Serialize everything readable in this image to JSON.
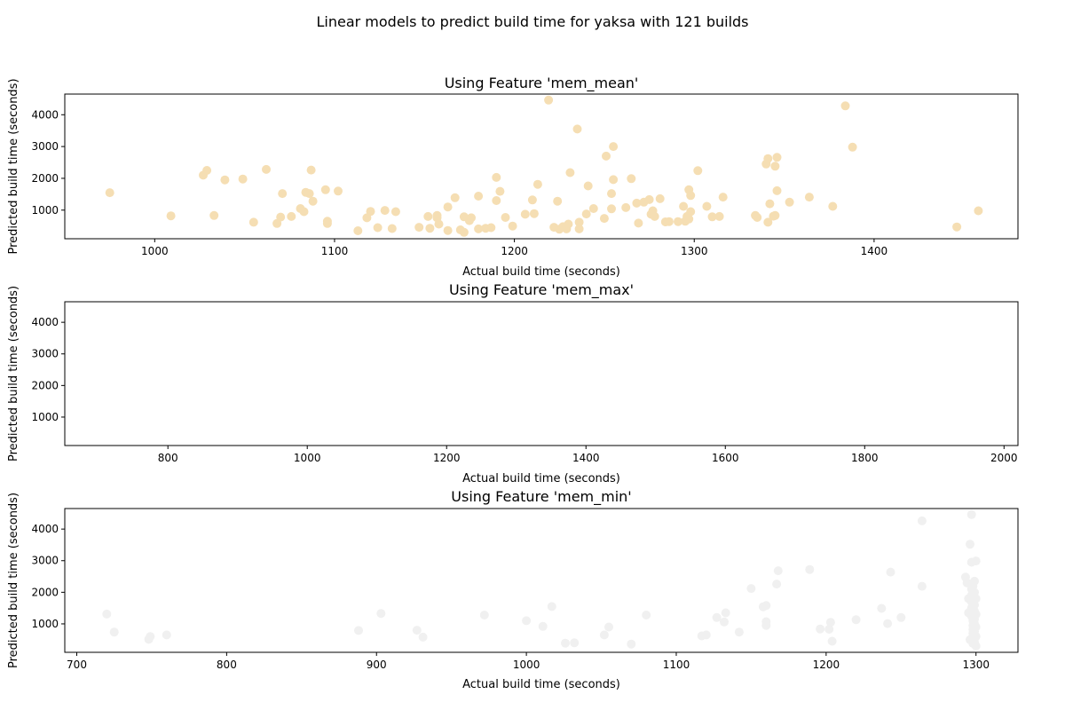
{
  "suptitle": "Linear models to predict build time for yaksa with 121 builds",
  "chart_data": [
    {
      "type": "scatter",
      "title": "Using Feature 'mem_mean'",
      "xlabel": "Actual build time (seconds)",
      "ylabel": "Predicted build time (seconds)",
      "xlim": [
        950,
        1480
      ],
      "ylim": [
        100,
        4650
      ],
      "xticks": [
        1000,
        1100,
        1200,
        1300,
        1400
      ],
      "yticks": [
        1000,
        2000,
        3000,
        4000
      ],
      "color": "#f5deb3",
      "points": [
        [
          975,
          1550
        ],
        [
          1009,
          820
        ],
        [
          1027,
          2100
        ],
        [
          1029,
          2250
        ],
        [
          1033,
          830
        ],
        [
          1039,
          1950
        ],
        [
          1049,
          1980
        ],
        [
          1055,
          620
        ],
        [
          1062,
          2280
        ],
        [
          1068,
          580
        ],
        [
          1070,
          780
        ],
        [
          1071,
          1520
        ],
        [
          1076,
          800
        ],
        [
          1081,
          1050
        ],
        [
          1083,
          950
        ],
        [
          1084,
          1560
        ],
        [
          1086,
          1520
        ],
        [
          1088,
          1280
        ],
        [
          1087,
          2260
        ],
        [
          1095,
          1640
        ],
        [
          1096,
          580
        ],
        [
          1096,
          650
        ],
        [
          1102,
          1600
        ],
        [
          1113,
          350
        ],
        [
          1118,
          760
        ],
        [
          1120,
          960
        ],
        [
          1124,
          450
        ],
        [
          1128,
          990
        ],
        [
          1132,
          420
        ],
        [
          1134,
          950
        ],
        [
          1147,
          460
        ],
        [
          1152,
          800
        ],
        [
          1153,
          430
        ],
        [
          1157,
          830
        ],
        [
          1157,
          760
        ],
        [
          1158,
          560
        ],
        [
          1163,
          1100
        ],
        [
          1163,
          360
        ],
        [
          1167,
          1390
        ],
        [
          1170,
          380
        ],
        [
          1172,
          790
        ],
        [
          1172,
          300
        ],
        [
          1175,
          670
        ],
        [
          1176,
          760
        ],
        [
          1180,
          1440
        ],
        [
          1180,
          410
        ],
        [
          1184,
          430
        ],
        [
          1187,
          450
        ],
        [
          1190,
          1300
        ],
        [
          1190,
          2030
        ],
        [
          1192,
          1590
        ],
        [
          1195,
          770
        ],
        [
          1199,
          500
        ],
        [
          1206,
          870
        ],
        [
          1210,
          1320
        ],
        [
          1211,
          890
        ],
        [
          1213,
          1810
        ],
        [
          1219,
          4460
        ],
        [
          1222,
          460
        ],
        [
          1224,
          1280
        ],
        [
          1225,
          400
        ],
        [
          1227,
          480
        ],
        [
          1229,
          410
        ],
        [
          1230,
          560
        ],
        [
          1231,
          2180
        ],
        [
          1235,
          3550
        ],
        [
          1236,
          410
        ],
        [
          1236,
          620
        ],
        [
          1240,
          880
        ],
        [
          1241,
          1760
        ],
        [
          1244,
          1050
        ],
        [
          1250,
          740
        ],
        [
          1251,
          2700
        ],
        [
          1254,
          1040
        ],
        [
          1254,
          1520
        ],
        [
          1255,
          3000
        ],
        [
          1255,
          1960
        ],
        [
          1262,
          1080
        ],
        [
          1265,
          1990
        ],
        [
          1268,
          1220
        ],
        [
          1269,
          590
        ],
        [
          1272,
          1250
        ],
        [
          1275,
          1330
        ],
        [
          1276,
          870
        ],
        [
          1277,
          980
        ],
        [
          1278,
          800
        ],
        [
          1281,
          1360
        ],
        [
          1284,
          630
        ],
        [
          1286,
          640
        ],
        [
          1291,
          640
        ],
        [
          1294,
          1120
        ],
        [
          1295,
          650
        ],
        [
          1296,
          800
        ],
        [
          1297,
          720
        ],
        [
          1297,
          1640
        ],
        [
          1298,
          1460
        ],
        [
          1298,
          950
        ],
        [
          1302,
          2240
        ],
        [
          1307,
          1120
        ],
        [
          1310,
          790
        ],
        [
          1314,
          800
        ],
        [
          1316,
          1410
        ],
        [
          1334,
          830
        ],
        [
          1335,
          770
        ],
        [
          1340,
          2450
        ],
        [
          1341,
          620
        ],
        [
          1341,
          2620
        ],
        [
          1342,
          1200
        ],
        [
          1344,
          810
        ],
        [
          1345,
          2380
        ],
        [
          1345,
          830
        ],
        [
          1346,
          1610
        ],
        [
          1346,
          2660
        ],
        [
          1353,
          1250
        ],
        [
          1364,
          1410
        ],
        [
          1377,
          1120
        ],
        [
          1384,
          4280
        ],
        [
          1388,
          2980
        ],
        [
          1446,
          470
        ],
        [
          1458,
          980
        ]
      ]
    },
    {
      "type": "scatter",
      "title": "Using Feature 'mem_max'",
      "xlabel": "Actual build time (seconds)",
      "ylabel": "Predicted build time (seconds)",
      "xlim": [
        652,
        2020
      ],
      "ylim": [
        100,
        4650
      ],
      "xticks": [
        800,
        1000,
        1200,
        1400,
        1600,
        1800,
        2000
      ],
      "yticks": [
        1000,
        2000,
        3000,
        4000
      ],
      "color": "#ffffff",
      "points": []
    },
    {
      "type": "scatter",
      "title": "Using Feature 'mem_min'",
      "xlabel": "Actual build time (seconds)",
      "ylabel": "Predicted build time (seconds)",
      "xlim": [
        692,
        1328
      ],
      "ylim": [
        100,
        4650
      ],
      "xticks": [
        700,
        800,
        900,
        1000,
        1100,
        1200,
        1300
      ],
      "yticks": [
        1000,
        2000,
        3000,
        4000
      ],
      "color": "#f0f0f0",
      "points": [
        [
          720,
          1310
        ],
        [
          725,
          740
        ],
        [
          748,
          510
        ],
        [
          749,
          600
        ],
        [
          760,
          650
        ],
        [
          888,
          790
        ],
        [
          903,
          1330
        ],
        [
          927,
          800
        ],
        [
          931,
          580
        ],
        [
          972,
          1280
        ],
        [
          1000,
          1100
        ],
        [
          1011,
          920
        ],
        [
          1017,
          1550
        ],
        [
          1026,
          390
        ],
        [
          1032,
          400
        ],
        [
          1052,
          650
        ],
        [
          1055,
          900
        ],
        [
          1070,
          360
        ],
        [
          1080,
          1280
        ],
        [
          1117,
          620
        ],
        [
          1120,
          650
        ],
        [
          1127,
          1200
        ],
        [
          1132,
          1060
        ],
        [
          1133,
          1350
        ],
        [
          1142,
          740
        ],
        [
          1150,
          2120
        ],
        [
          1158,
          1540
        ],
        [
          1160,
          1580
        ],
        [
          1160,
          1070
        ],
        [
          1160,
          950
        ],
        [
          1167,
          2260
        ],
        [
          1168,
          2680
        ],
        [
          1189,
          2720
        ],
        [
          1196,
          840
        ],
        [
          1202,
          830
        ],
        [
          1203,
          1050
        ],
        [
          1204,
          450
        ],
        [
          1220,
          1130
        ],
        [
          1237,
          1490
        ],
        [
          1241,
          1010
        ],
        [
          1243,
          2640
        ],
        [
          1250,
          1200
        ],
        [
          1264,
          2190
        ],
        [
          1264,
          4260
        ],
        [
          1293,
          2480
        ],
        [
          1294,
          2300
        ],
        [
          1295,
          1800
        ],
        [
          1295,
          1350
        ],
        [
          1296,
          500
        ],
        [
          1296,
          3520
        ],
        [
          1297,
          2950
        ],
        [
          1297,
          4460
        ],
        [
          1297,
          2100
        ],
        [
          1297,
          1900
        ],
        [
          1297,
          1700
        ],
        [
          1297,
          1500
        ],
        [
          1297,
          1250
        ],
        [
          1298,
          1100
        ],
        [
          1298,
          950
        ],
        [
          1298,
          820
        ],
        [
          1298,
          700
        ],
        [
          1298,
          600
        ],
        [
          1298,
          450
        ],
        [
          1298,
          380
        ],
        [
          1298,
          2200
        ],
        [
          1299,
          1600
        ],
        [
          1299,
          1400
        ],
        [
          1299,
          1150
        ],
        [
          1299,
          1000
        ],
        [
          1299,
          880
        ],
        [
          1299,
          760
        ],
        [
          1299,
          650
        ],
        [
          1299,
          540
        ],
        [
          1299,
          420
        ],
        [
          1299,
          2350
        ],
        [
          1299,
          2000
        ],
        [
          1300,
          1800
        ],
        [
          1300,
          1300
        ],
        [
          1300,
          900
        ],
        [
          1300,
          600
        ],
        [
          1300,
          300
        ],
        [
          1300,
          2990
        ]
      ]
    }
  ]
}
